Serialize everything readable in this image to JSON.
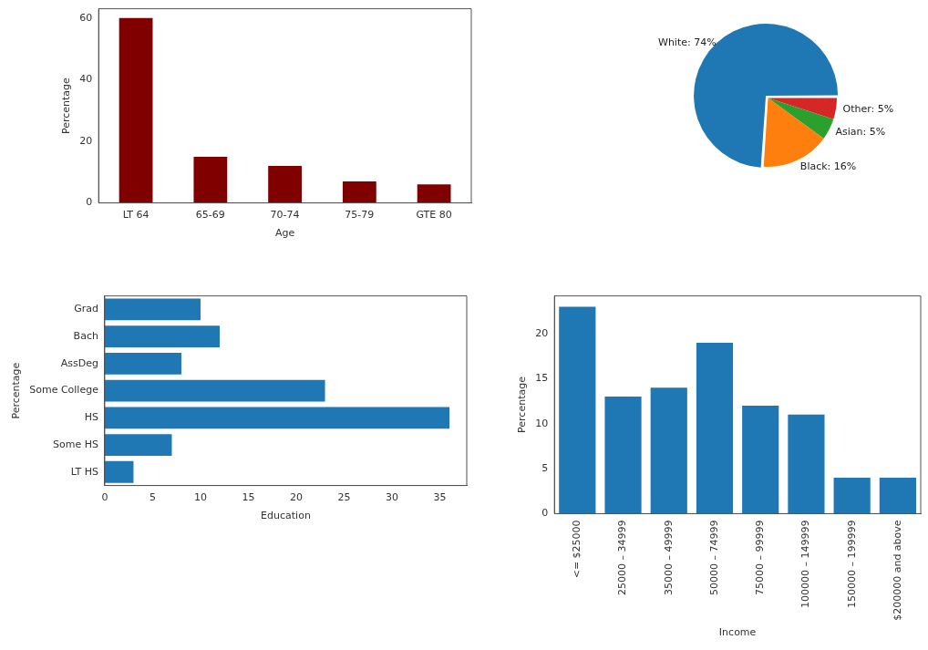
{
  "chart_data": [
    {
      "type": "bar",
      "xlabel": "Age",
      "ylabel": "Percentage",
      "categories": [
        "LT 64",
        "65-69",
        "70-74",
        "75-79",
        "GTE 80"
      ],
      "values": [
        60,
        15,
        12,
        7,
        6
      ],
      "color": "#800000",
      "ylim": [
        0,
        63
      ],
      "yticks": [
        0,
        20,
        40,
        60
      ]
    },
    {
      "type": "pie",
      "categories": [
        "Other",
        "Asian",
        "Black",
        "White"
      ],
      "values": [
        5,
        5,
        16,
        74
      ],
      "colors": [
        "#d62728",
        "#2ca02c",
        "#ff7f0e",
        "#1f77b4"
      ],
      "value_labels": [
        "5%",
        "5%",
        "16%",
        "74%"
      ]
    },
    {
      "type": "bar",
      "orientation": "horizontal",
      "xlabel": "Education",
      "ylabel": "Percentage",
      "categories": [
        "Grad",
        "Bach",
        "AssDeg",
        "Some College",
        "HS",
        "Some HS",
        "LT HS"
      ],
      "values": [
        10,
        12,
        8,
        23,
        36,
        7,
        3
      ],
      "color": "#1f77b4",
      "xlim": [
        0,
        37.8
      ],
      "xticks": [
        0,
        5,
        10,
        15,
        20,
        25,
        30,
        35
      ]
    },
    {
      "type": "bar",
      "xlabel": "Income",
      "ylabel": "Percentage",
      "categories": [
        "<= $25000",
        "25000 – 34999",
        "35000 – 49999",
        "50000 – 74999",
        "75000 – 99999",
        "100000 – 149999",
        "150000 – 199999",
        "$200000 and above"
      ],
      "values": [
        23,
        13,
        14,
        19,
        12,
        11,
        4,
        4
      ],
      "color": "#1f77b4",
      "ylim": [
        0,
        24.2
      ],
      "yticks": [
        0,
        5,
        10,
        15,
        20
      ]
    }
  ]
}
